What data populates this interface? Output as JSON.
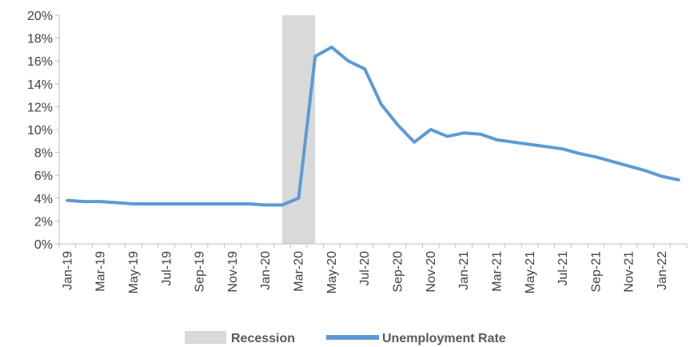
{
  "chart_data": {
    "type": "line",
    "title": "",
    "xlabel": "",
    "ylabel": "",
    "ylim": [
      0,
      20
    ],
    "yticks": [
      "0%",
      "2%",
      "4%",
      "6%",
      "8%",
      "10%",
      "12%",
      "14%",
      "16%",
      "18%",
      "20%"
    ],
    "x": [
      "Jan-19",
      "Feb-19",
      "Mar-19",
      "Apr-19",
      "May-19",
      "Jun-19",
      "Jul-19",
      "Aug-19",
      "Sep-19",
      "Oct-19",
      "Nov-19",
      "Dec-19",
      "Jan-20",
      "Feb-20",
      "Mar-20",
      "Apr-20",
      "May-20",
      "Jun-20",
      "Jul-20",
      "Aug-20",
      "Sep-20",
      "Oct-20",
      "Nov-20",
      "Dec-20",
      "Jan-21",
      "Feb-21",
      "Mar-21",
      "Apr-21",
      "May-21",
      "Jun-21",
      "Jul-21",
      "Aug-21",
      "Sep-21",
      "Oct-21",
      "Nov-21",
      "Dec-21",
      "Jan-22",
      "Feb-22"
    ],
    "xtick_labels": [
      "Jan-19",
      "Mar-19",
      "May-19",
      "Jul-19",
      "Sep-19",
      "Nov-19",
      "Jan-20",
      "Mar-20",
      "May-20",
      "Jul-20",
      "Sep-20",
      "Nov-20",
      "Jan-21",
      "Mar-21",
      "May-21",
      "Jul-21",
      "Sep-21",
      "Nov-21",
      "Jan-22"
    ],
    "series": [
      {
        "name": "Unemployment Rate",
        "color": "#5b9bd5",
        "values": [
          3.8,
          3.7,
          3.7,
          3.6,
          3.5,
          3.5,
          3.5,
          3.5,
          3.5,
          3.5,
          3.5,
          3.5,
          3.4,
          3.4,
          4.0,
          16.4,
          17.2,
          16.0,
          15.3,
          12.2,
          10.4,
          8.9,
          10.0,
          9.4,
          9.7,
          9.6,
          9.1,
          8.9,
          8.7,
          8.5,
          8.3,
          7.9,
          7.6,
          7.2,
          6.8,
          6.4,
          5.9,
          5.6
        ]
      }
    ],
    "recession": {
      "name": "Recession",
      "color": "#d9d9d9",
      "start": "Feb-20",
      "end": "Apr-20"
    },
    "grid": false,
    "legend_position": "bottom"
  }
}
